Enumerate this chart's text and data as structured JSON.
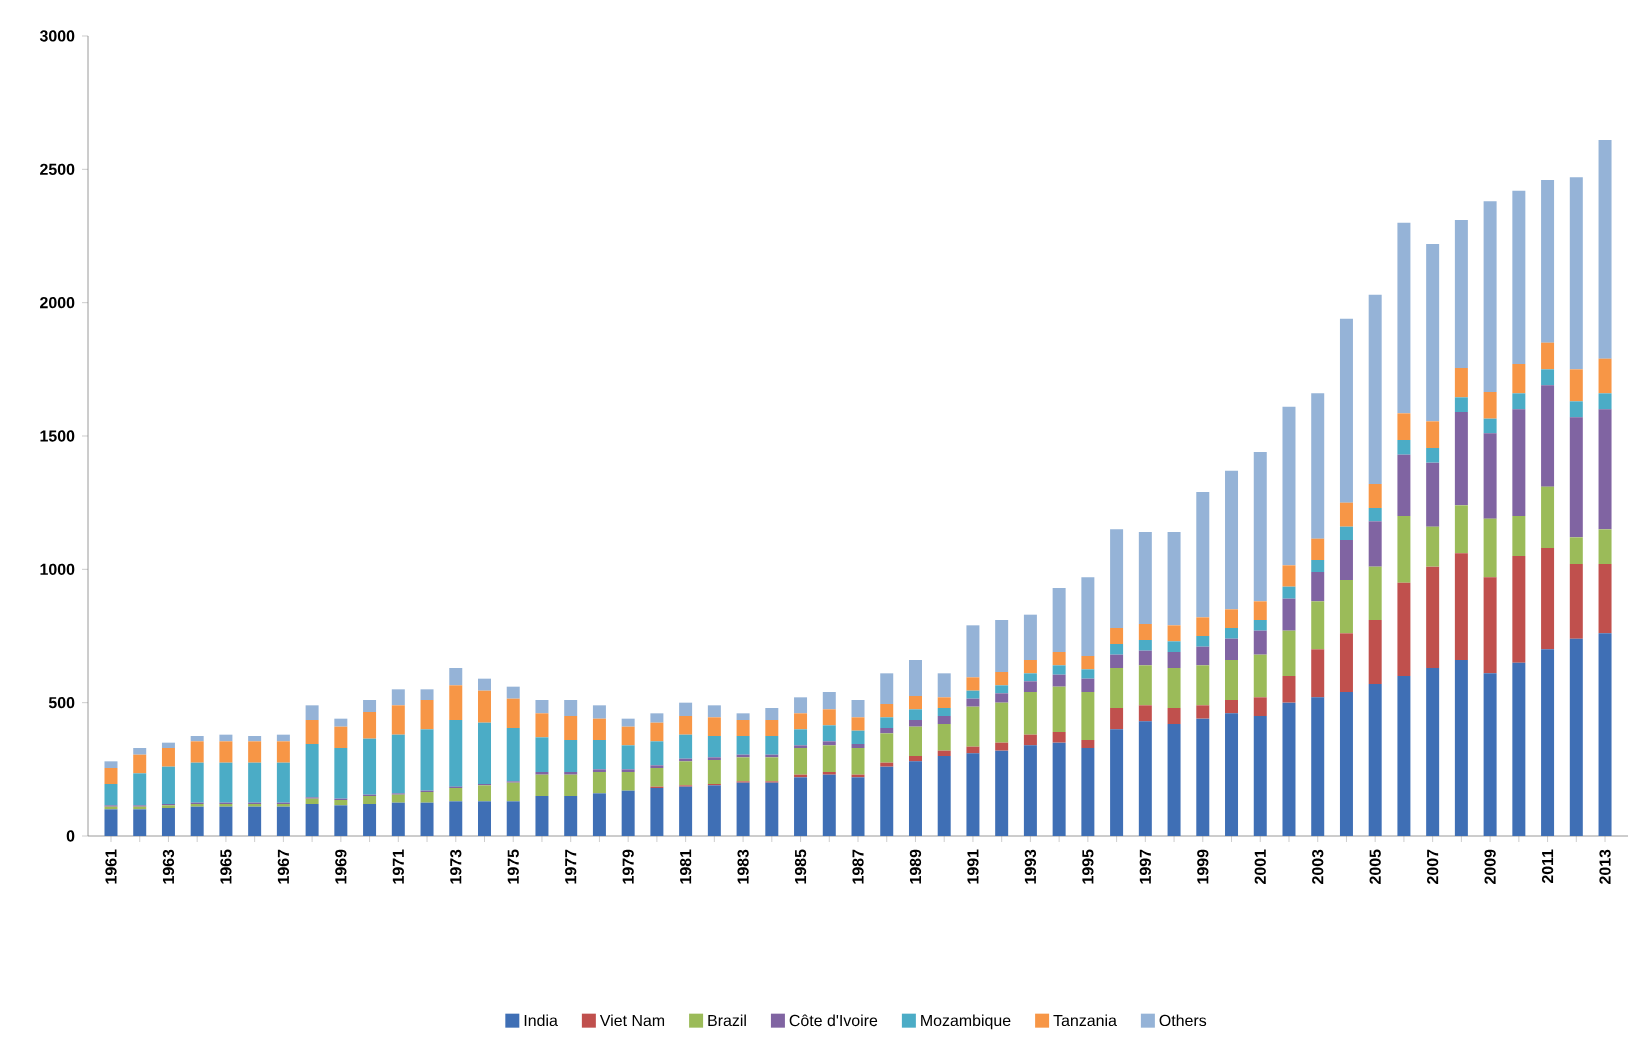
{
  "chart_data": {
    "type": "bar",
    "stacked": true,
    "legend": "bottom",
    "grid": false,
    "categories": [
      "1961",
      null,
      "1963",
      null,
      "1965",
      null,
      "1967",
      null,
      "1969",
      null,
      "1971",
      null,
      "1973",
      null,
      "1975",
      null,
      "1977",
      null,
      "1979",
      null,
      "1981",
      null,
      "1983",
      null,
      "1985",
      null,
      "1987",
      null,
      "1989",
      null,
      "1991",
      null,
      "1993",
      null,
      "1995",
      null,
      "1997",
      null,
      "1999",
      null,
      "2001",
      null,
      "2003",
      null,
      "2005",
      null,
      "2007",
      null,
      "2009",
      null,
      "2011",
      null,
      "2013"
    ],
    "ylim": [
      0,
      3000
    ],
    "yticks": [
      0,
      500,
      1000,
      1500,
      2000,
      2500,
      3000
    ],
    "series": [
      {
        "name": "India",
        "color": "#3f6fb5",
        "values": [
          100,
          100,
          105,
          110,
          110,
          110,
          110,
          120,
          115,
          120,
          125,
          125,
          130,
          130,
          130,
          150,
          150,
          160,
          170,
          180,
          185,
          190,
          200,
          200,
          220,
          230,
          220,
          260,
          280,
          300,
          310,
          320,
          340,
          350,
          330,
          400,
          430,
          420,
          440,
          460,
          450,
          500,
          520,
          540,
          570,
          600,
          630,
          660,
          610,
          650,
          700,
          740,
          760
        ]
      },
      {
        "name": "Viet Nam",
        "color": "#c0504d",
        "values": [
          0,
          0,
          0,
          0,
          0,
          0,
          0,
          0,
          0,
          0,
          0,
          0,
          0,
          0,
          0,
          0,
          0,
          0,
          0,
          5,
          5,
          5,
          5,
          5,
          10,
          10,
          10,
          15,
          20,
          20,
          25,
          30,
          40,
          40,
          30,
          80,
          60,
          60,
          50,
          50,
          70,
          100,
          180,
          220,
          240,
          350,
          380,
          400,
          360,
          400,
          380,
          280,
          260
        ]
      },
      {
        "name": "Brazil",
        "color": "#9bbb59",
        "values": [
          10,
          10,
          10,
          10,
          10,
          10,
          10,
          20,
          20,
          30,
          30,
          40,
          50,
          60,
          70,
          80,
          80,
          80,
          70,
          70,
          90,
          90,
          90,
          90,
          100,
          100,
          100,
          110,
          110,
          100,
          150,
          150,
          160,
          170,
          180,
          150,
          150,
          150,
          150,
          150,
          160,
          170,
          180,
          200,
          200,
          250,
          150,
          180,
          220,
          150,
          230,
          100,
          130
        ]
      },
      {
        "name": "Côte d'Ivoire",
        "color": "#8064a2",
        "values": [
          5,
          5,
          5,
          5,
          5,
          5,
          5,
          5,
          5,
          5,
          5,
          5,
          5,
          5,
          5,
          10,
          10,
          10,
          10,
          10,
          10,
          10,
          10,
          10,
          10,
          15,
          15,
          20,
          25,
          30,
          30,
          35,
          40,
          45,
          50,
          50,
          55,
          60,
          70,
          80,
          90,
          120,
          110,
          150,
          170,
          230,
          240,
          350,
          320,
          400,
          380,
          450,
          450
        ]
      },
      {
        "name": "Mozambique",
        "color": "#4bacc6",
        "values": [
          80,
          120,
          140,
          150,
          150,
          150,
          150,
          200,
          190,
          210,
          220,
          230,
          250,
          230,
          200,
          130,
          120,
          110,
          90,
          90,
          90,
          80,
          70,
          70,
          60,
          60,
          50,
          40,
          40,
          30,
          30,
          30,
          30,
          35,
          35,
          40,
          40,
          40,
          40,
          40,
          40,
          45,
          45,
          50,
          50,
          55,
          55,
          55,
          55,
          60,
          60,
          60,
          60
        ]
      },
      {
        "name": "Tanzania",
        "color": "#f79646",
        "values": [
          60,
          70,
          70,
          80,
          80,
          80,
          80,
          90,
          80,
          100,
          110,
          110,
          130,
          120,
          110,
          90,
          90,
          80,
          70,
          70,
          70,
          70,
          60,
          60,
          60,
          60,
          50,
          50,
          50,
          40,
          50,
          50,
          50,
          50,
          50,
          60,
          60,
          60,
          70,
          70,
          70,
          80,
          80,
          90,
          90,
          100,
          100,
          110,
          100,
          110,
          100,
          120,
          130
        ]
      },
      {
        "name": "Others",
        "color": "#95b3d7",
        "values": [
          25,
          25,
          20,
          20,
          25,
          20,
          25,
          55,
          30,
          45,
          60,
          40,
          65,
          45,
          45,
          50,
          60,
          50,
          30,
          35,
          50,
          45,
          25,
          45,
          60,
          65,
          65,
          115,
          135,
          90,
          195,
          195,
          170,
          240,
          295,
          370,
          345,
          350,
          470,
          520,
          560,
          595,
          545,
          690,
          710,
          715,
          665,
          555,
          715,
          650,
          610,
          720,
          820
        ]
      }
    ]
  }
}
